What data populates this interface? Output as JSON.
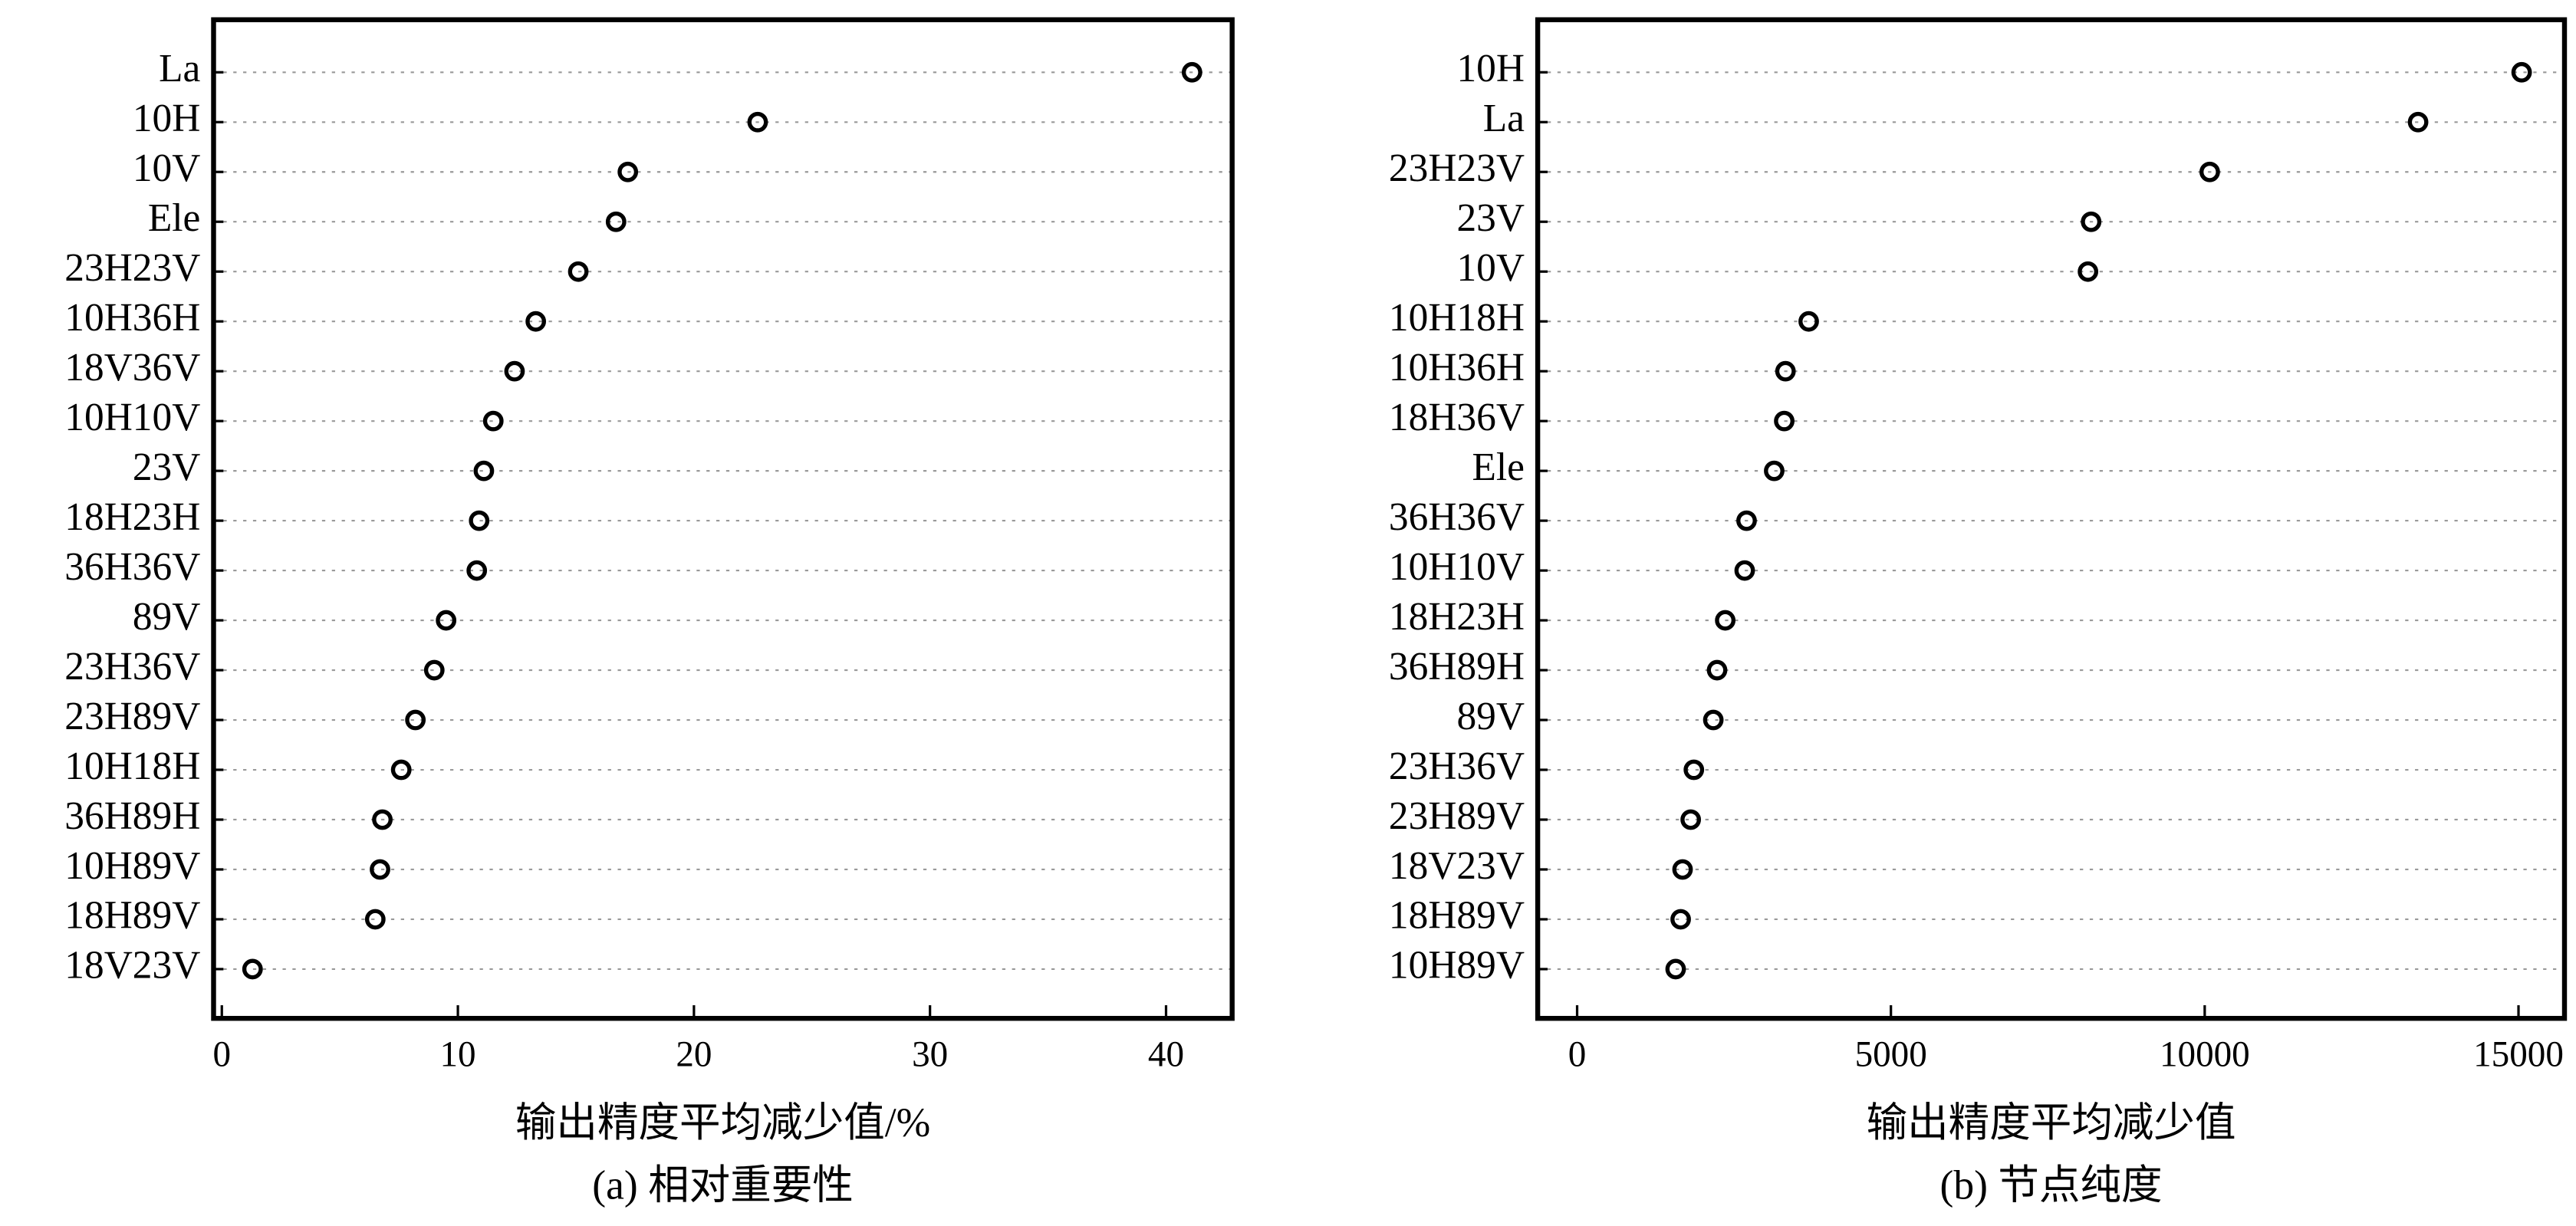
{
  "chart_data": [
    {
      "type": "dot",
      "xlabel": "输出精度平均减少值/%",
      "caption": "(a) 相对重要性",
      "categories": [
        "La",
        "10H",
        "10V",
        "Ele",
        "23H23V",
        "10H36H",
        "18V36V",
        "10H10V",
        "23V",
        "18H23H",
        "36H36V",
        "89V",
        "23H36V",
        "23H89V",
        "10H18H",
        "36H89H",
        "10H89V",
        "18H89V",
        "18V23V"
      ],
      "values": [
        41.1,
        22.7,
        17.2,
        16.7,
        15.1,
        13.3,
        12.4,
        11.5,
        11.1,
        10.9,
        10.8,
        9.5,
        9.0,
        8.2,
        7.6,
        6.8,
        6.7,
        6.5,
        1.3
      ],
      "color": "#000000",
      "xlim": [
        -0.35,
        42.8
      ],
      "xticks": [
        0,
        10,
        20,
        30,
        40
      ],
      "grid": true
    },
    {
      "type": "dot",
      "xlabel": "输出精度平均减少值",
      "caption": "(b) 节点纯度",
      "categories": [
        "10H",
        "La",
        "23H23V",
        "23V",
        "10V",
        "10H18H",
        "10H36H",
        "18H36V",
        "Ele",
        "36H36V",
        "10H10V",
        "18H23H",
        "36H89H",
        "89V",
        "23H36V",
        "23H89V",
        "18V23V",
        "18H89V",
        "10H89V"
      ],
      "values": [
        15050,
        13400,
        10080,
        8190,
        8140,
        3690,
        3320,
        3300,
        3140,
        2700,
        2670,
        2360,
        2230,
        2170,
        1860,
        1810,
        1680,
        1650,
        1570
      ],
      "color": "#000000",
      "xlim": [
        -628,
        15733
      ],
      "xticks": [
        0,
        5000,
        10000,
        15000
      ],
      "grid": true
    }
  ]
}
